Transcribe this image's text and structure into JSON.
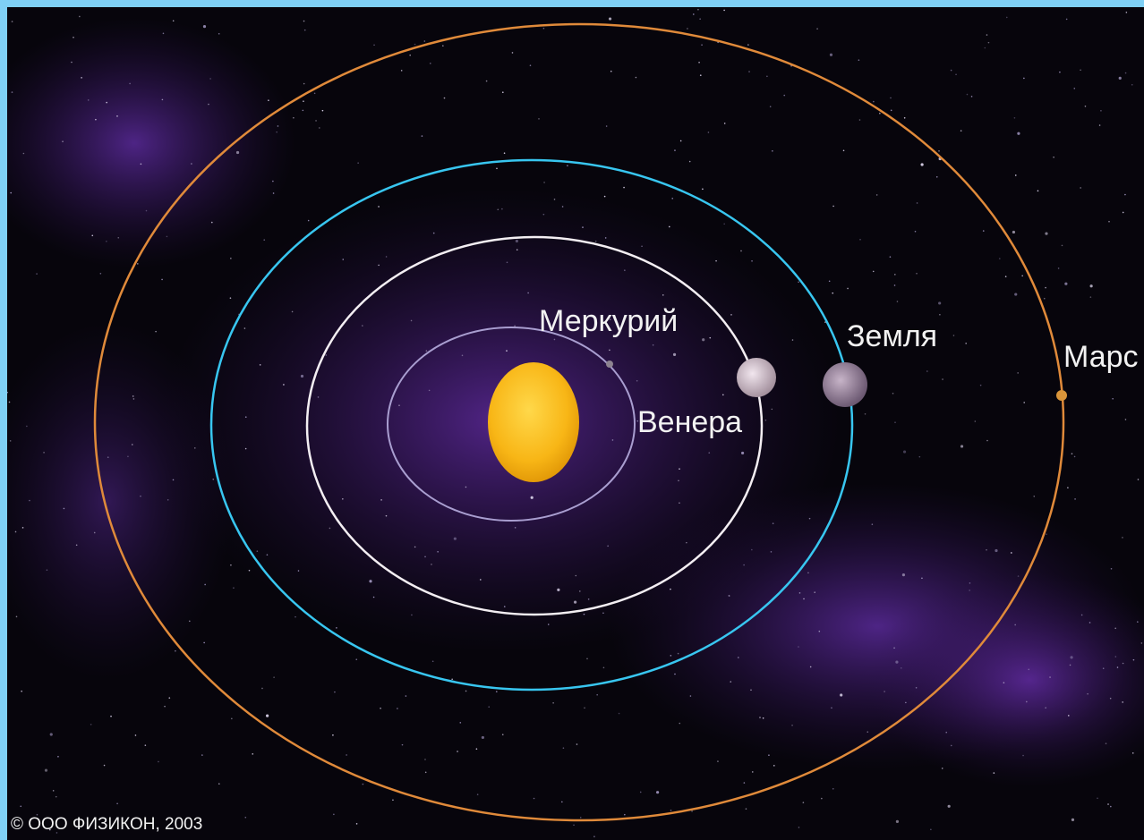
{
  "planets": [
    {
      "label": "Меркурий"
    },
    {
      "label": "Венера"
    },
    {
      "label": "Земля"
    },
    {
      "label": "Марс"
    }
  ],
  "copyright": "© ООО ФИЗИКОН, 2003"
}
